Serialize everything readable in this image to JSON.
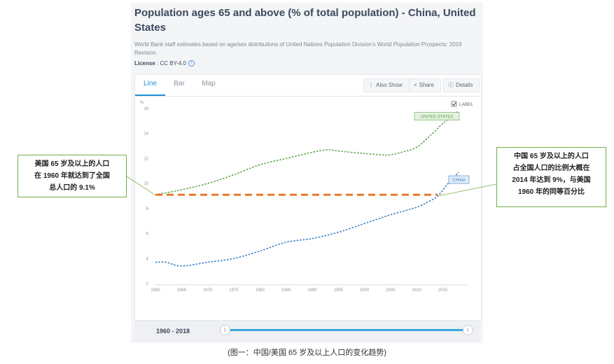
{
  "header": {
    "title": "Population ages 65 and above (% of total population) - China, United States",
    "source": "World Bank staff estimates based on age/sex distributions of United Nations Population Division's World Population Prospects: 2019 Revision.",
    "license_label": "License",
    "license_value": " : CC BY-4.0"
  },
  "tabs": [
    "Line",
    "Bar",
    "Map"
  ],
  "toolbar": {
    "also_show": "Also Show",
    "share": "Share",
    "details": "Details"
  },
  "checkbox": {
    "label": "LABEL",
    "checked": true
  },
  "footer": {
    "year_range": "1960 - 2018"
  },
  "annotations": {
    "left": "美国 65 岁及以上的人口\n在 1960 年就达到了全国\n总人口的 9.1%",
    "right": "中国 65 岁及以上的人口\n占全国人口的比例大概在\n2014 年达到 9%，与美国\n1960 年的同等百分比"
  },
  "caption": "(图一：中国/美国 65 岁及以上人口的变化趋势)",
  "colors": {
    "us": "#5aa54a",
    "china": "#3a7fc4",
    "reference": "#e8782a",
    "accent": "#1e90d6",
    "callout_border": "#70ad47"
  },
  "chart_data": {
    "type": "line",
    "ylabel": "%",
    "ylim": [
      2,
      16
    ],
    "yticks": [
      2,
      4,
      6,
      8,
      10,
      12,
      14,
      16
    ],
    "xlim": [
      1960,
      2018
    ],
    "xticks": [
      1960,
      1965,
      1970,
      1975,
      1980,
      1985,
      1990,
      1995,
      2000,
      2005,
      2010,
      2015
    ],
    "series": [
      {
        "name": "UNITED STATES",
        "x": [
          1960,
          1965,
          1970,
          1975,
          1980,
          1985,
          1990,
          1993,
          1995,
          2000,
          2003,
          2005,
          2008,
          2010,
          2012,
          2015,
          2018
        ],
        "values": [
          9.1,
          9.5,
          10.0,
          10.7,
          11.5,
          12.0,
          12.5,
          12.7,
          12.6,
          12.4,
          12.3,
          12.3,
          12.6,
          12.9,
          13.6,
          14.8,
          15.8
        ]
      },
      {
        "name": "CHINA",
        "x": [
          1960,
          1962,
          1965,
          1970,
          1975,
          1980,
          1985,
          1990,
          1995,
          2000,
          2005,
          2010,
          2012,
          2014,
          2016,
          2018
        ],
        "values": [
          3.7,
          3.7,
          3.4,
          3.7,
          4.0,
          4.6,
          5.3,
          5.6,
          6.1,
          6.8,
          7.5,
          8.1,
          8.5,
          9.0,
          10.0,
          10.9
        ]
      },
      {
        "name": "",
        "x": [
          1960,
          2014
        ],
        "values": [
          9.1,
          9.1
        ]
      }
    ]
  }
}
